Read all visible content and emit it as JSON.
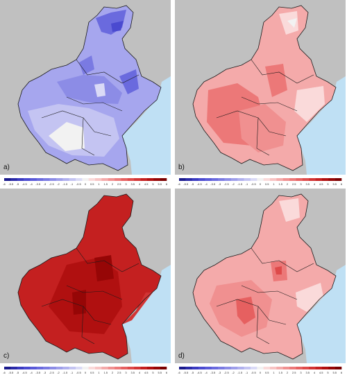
{
  "panels": [
    {
      "label": "a)",
      "anomaly": "negative"
    },
    {
      "label": "b)",
      "anomaly": "positive"
    },
    {
      "label": "c)",
      "anomaly": "strong-positive"
    },
    {
      "label": "d)",
      "anomaly": "positive"
    }
  ],
  "colorbar": {
    "ticks": [
      "-6",
      "-5.5",
      "-5",
      "-4.5",
      "-4",
      "-3.5",
      "-3",
      "-2.5",
      "-2",
      "-1.5",
      "-1",
      "-0.5",
      "0",
      "0.5",
      "1",
      "1.5",
      "2",
      "2.5",
      "3",
      "3.5",
      "4",
      "4.5",
      "5",
      "5.5",
      "6"
    ],
    "colors": [
      "#1a1a8c",
      "#2a2aa8",
      "#3a3ac0",
      "#4a4ad0",
      "#5a5ad8",
      "#6a6ade",
      "#7a7ae2",
      "#8c8ce6",
      "#9e9eea",
      "#b0b0ee",
      "#c4c4f2",
      "#dadaf6",
      "#f2f2f2",
      "#fadada",
      "#f8c4c4",
      "#f4aaaa",
      "#f09090",
      "#ec7878",
      "#e66060",
      "#de4a4a",
      "#d23434",
      "#c42020",
      "#b01010",
      "#960606",
      "#7a0000"
    ]
  },
  "colors": {
    "background": "#c0c0c0",
    "sea": "#bfe0f4",
    "border": "#1a1a1a"
  }
}
